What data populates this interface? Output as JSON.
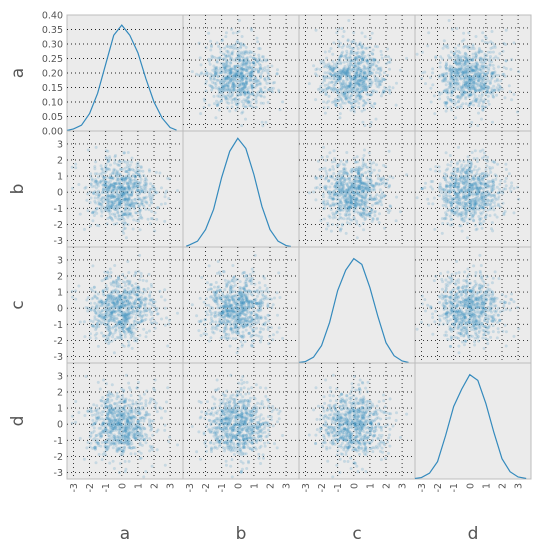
{
  "chart_data": {
    "type": "scatter",
    "variables": [
      "a",
      "b",
      "c",
      "d"
    ],
    "range": [
      -3.4,
      3.8
    ],
    "x_ticks": [
      "-3",
      "-2",
      "-1",
      "0",
      "1",
      "2",
      "3"
    ],
    "y_ticks": [
      "-3",
      "-2",
      "-1",
      "0",
      "1",
      "2",
      "3"
    ],
    "density_ticks": [
      "0.00",
      "0.05",
      "0.10",
      "0.15",
      "0.20",
      "0.25",
      "0.30",
      "0.35",
      "0.40"
    ],
    "density_ylim": [
      0,
      0.4
    ],
    "points_per_panel": 750,
    "density_curves": [
      {
        "variable": "a",
        "x": [
          -3.4,
          -3,
          -2.5,
          -2,
          -1.5,
          -1,
          -0.5,
          0,
          0.5,
          1,
          1.5,
          2,
          2.5,
          3,
          3.4
        ],
        "y": [
          0.002,
          0.007,
          0.02,
          0.06,
          0.13,
          0.23,
          0.33,
          0.365,
          0.33,
          0.27,
          0.18,
          0.1,
          0.045,
          0.012,
          0.003
        ]
      },
      {
        "variable": "b",
        "x": [
          -3.2,
          -3,
          -2.5,
          -2,
          -1.5,
          -1,
          -0.5,
          0,
          0.5,
          1,
          1.5,
          2,
          2.5,
          3,
          3.3
        ],
        "y": [
          0.003,
          0.007,
          0.02,
          0.06,
          0.13,
          0.24,
          0.33,
          0.375,
          0.34,
          0.25,
          0.14,
          0.06,
          0.02,
          0.005,
          0.002
        ]
      },
      {
        "variable": "c",
        "x": [
          -3.4,
          -3,
          -2.5,
          -2,
          -1.5,
          -1,
          -0.5,
          0,
          0.5,
          1,
          1.5,
          2,
          2.5,
          3,
          3.4
        ],
        "y": [
          0.002,
          0.005,
          0.02,
          0.06,
          0.14,
          0.25,
          0.32,
          0.36,
          0.34,
          0.26,
          0.16,
          0.07,
          0.025,
          0.007,
          0.002
        ]
      },
      {
        "variable": "d",
        "x": [
          -3.4,
          -3,
          -2.5,
          -2,
          -1.5,
          -1,
          -0.5,
          0,
          0.5,
          1,
          1.5,
          2,
          2.5,
          3,
          3.5
        ],
        "y": [
          0.002,
          0.005,
          0.02,
          0.06,
          0.15,
          0.25,
          0.31,
          0.36,
          0.34,
          0.26,
          0.16,
          0.07,
          0.025,
          0.007,
          0.002
        ]
      }
    ],
    "grid": true,
    "colors": {
      "points": "#348abd",
      "panel": "#ebebeb",
      "frame": "#bcbcbc"
    }
  }
}
